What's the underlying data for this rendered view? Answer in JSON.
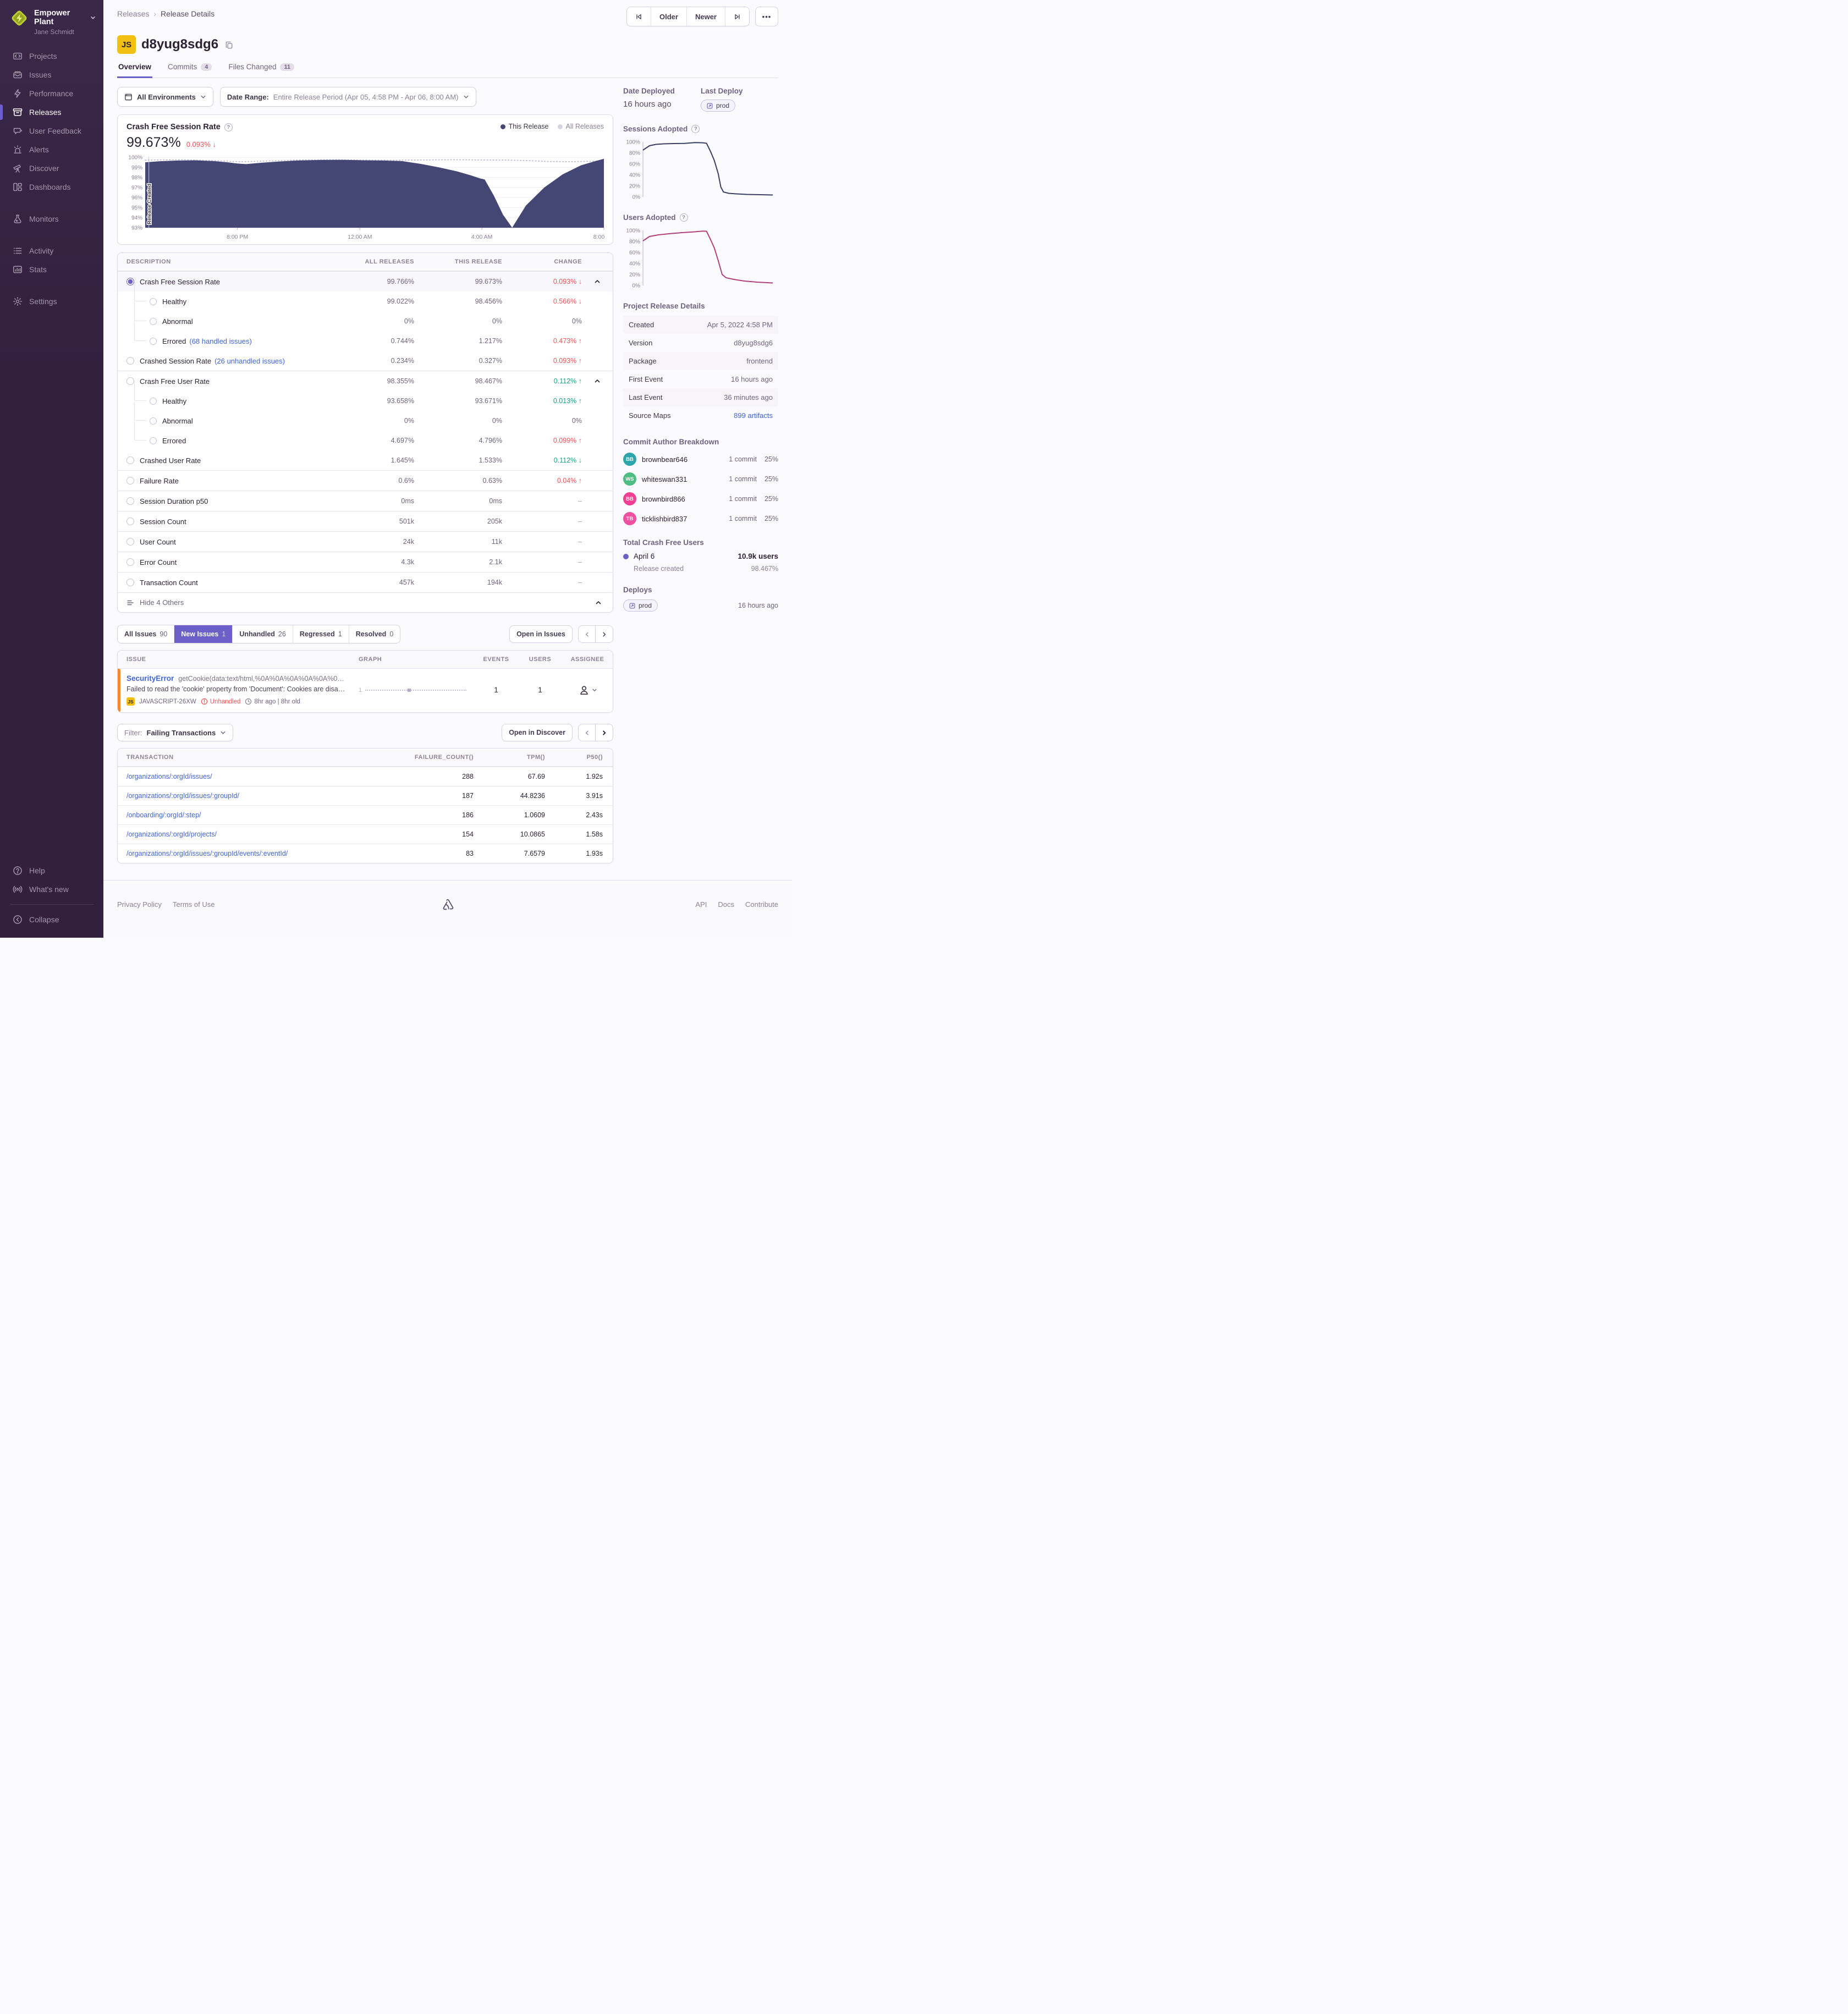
{
  "colors": {
    "accent": "#6c5fc7",
    "link": "#4265d6",
    "negative": "#ef5459",
    "positive": "#18a085",
    "chart_this_release": "#444674",
    "chart_all_releases": "#c9c2d6",
    "sessions_adopted_line": "#3b3d63",
    "users_adopted_line": "#b2407c",
    "issue_level_bar": "#ee8a33",
    "js_badge_bg": "#f2c012",
    "sidebar_bg": "#33203f"
  },
  "sidebar": {
    "org": "Empower Plant",
    "user": "Jane Schmidt",
    "items": [
      {
        "label": "Projects"
      },
      {
        "label": "Issues"
      },
      {
        "label": "Performance"
      },
      {
        "label": "Releases"
      },
      {
        "label": "User Feedback"
      },
      {
        "label": "Alerts"
      },
      {
        "label": "Discover"
      },
      {
        "label": "Dashboards"
      },
      {
        "label": "Monitors"
      },
      {
        "label": "Activity"
      },
      {
        "label": "Stats"
      },
      {
        "label": "Settings"
      }
    ],
    "bottom": [
      {
        "label": "Help"
      },
      {
        "label": "What's new"
      },
      {
        "label": "Collapse"
      }
    ]
  },
  "header": {
    "breadcrumb": [
      "Releases",
      "Release Details"
    ],
    "older": "Older",
    "newer": "Newer",
    "project_badge": "JS",
    "title": "d8yug8sdg6",
    "tabs": [
      {
        "label": "Overview",
        "badge": ""
      },
      {
        "label": "Commits",
        "badge": "4"
      },
      {
        "label": "Files Changed",
        "badge": "11"
      }
    ]
  },
  "filters": {
    "environments": "All Environments",
    "date_range_label": "Date Range:",
    "date_range_value": "Entire Release Period (Apr 05, 4:58 PM - Apr 06, 8:00 AM)"
  },
  "chart": {
    "title": "Crash Free Session Rate",
    "big_value": "99.673%",
    "delta": "0.093%",
    "delta_arrow": "↓",
    "legend_this": "This Release",
    "legend_all": "All Releases"
  },
  "chart_data": [
    {
      "id": "crash_free_session_rate",
      "type": "area",
      "title": "Crash Free Session Rate",
      "ylim": [
        93,
        100
      ],
      "yticks": [
        93,
        94,
        95,
        96,
        97,
        98,
        99,
        100
      ],
      "grid": true,
      "axis": "bottom",
      "annotation": "Release Created",
      "xticks": [
        {
          "pos": 20.1,
          "label": "8:00 PM"
        },
        {
          "pos": 46.8,
          "label": "12:00 AM"
        },
        {
          "pos": 73.4,
          "label": "4:00 AM"
        },
        {
          "pos": 100,
          "label": "8:00 AM"
        }
      ],
      "series": [
        {
          "name": "All Releases",
          "type": "dotted",
          "color": "#c9c2d6",
          "points": [
            [
              0,
              99.72
            ],
            [
              8,
              99.76
            ],
            [
              16,
              99.65
            ],
            [
              21,
              99.55
            ],
            [
              26,
              99.62
            ],
            [
              33,
              99.72
            ],
            [
              40,
              99.76
            ],
            [
              47,
              99.72
            ],
            [
              54,
              99.7
            ],
            [
              60,
              99.73
            ],
            [
              67,
              99.76
            ],
            [
              73,
              99.74
            ],
            [
              79,
              99.72
            ],
            [
              84,
              99.66
            ],
            [
              88,
              99.58
            ],
            [
              93,
              99.56
            ],
            [
              97,
              99.6
            ],
            [
              100,
              99.64
            ]
          ]
        },
        {
          "name": "This Release",
          "type": "area",
          "color": "#444674",
          "points": [
            [
              0,
              99.5
            ],
            [
              3,
              99.6
            ],
            [
              7,
              99.68
            ],
            [
              11,
              99.7
            ],
            [
              15,
              99.62
            ],
            [
              18,
              99.5
            ],
            [
              20,
              99.38
            ],
            [
              22,
              99.32
            ],
            [
              25,
              99.45
            ],
            [
              29,
              99.58
            ],
            [
              33,
              99.68
            ],
            [
              38,
              99.73
            ],
            [
              43,
              99.75
            ],
            [
              48,
              99.7
            ],
            [
              52,
              99.68
            ],
            [
              56,
              99.62
            ],
            [
              60,
              99.35
            ],
            [
              64,
              99.0
            ],
            [
              68,
              98.6
            ],
            [
              71,
              98.2
            ],
            [
              73,
              97.9
            ],
            [
              74,
              97.8
            ],
            [
              76,
              96.2
            ],
            [
              78,
              94.3
            ],
            [
              80,
              93.0
            ],
            [
              83,
              95.2
            ],
            [
              87,
              97.0
            ],
            [
              91,
              98.3
            ],
            [
              95,
              99.2
            ],
            [
              98,
              99.6
            ],
            [
              100,
              99.85
            ]
          ]
        }
      ]
    },
    {
      "id": "sessions_adopted",
      "type": "line",
      "title": "Sessions Adopted",
      "ylim": [
        0,
        100
      ],
      "yticks": [
        0,
        20,
        40,
        60,
        80,
        100
      ],
      "axis": "left",
      "series": [
        {
          "name": "Sessions Adopted",
          "type": "line",
          "color": "#3b3d63",
          "points": [
            [
              0,
              85
            ],
            [
              5,
              93
            ],
            [
              10,
              95.5
            ],
            [
              16,
              96.5
            ],
            [
              24,
              97
            ],
            [
              32,
              97.2
            ],
            [
              40,
              98.8
            ],
            [
              46,
              98.4
            ],
            [
              49,
              97.5
            ],
            [
              52,
              83
            ],
            [
              55,
              66
            ],
            [
              58,
              42
            ],
            [
              60,
              18
            ],
            [
              62,
              9
            ],
            [
              66,
              6.5
            ],
            [
              72,
              5.5
            ],
            [
              80,
              4.5
            ],
            [
              90,
              4
            ],
            [
              100,
              3.5
            ]
          ]
        }
      ]
    },
    {
      "id": "users_adopted",
      "type": "line",
      "title": "Users Adopted",
      "ylim": [
        0,
        100
      ],
      "yticks": [
        0,
        20,
        40,
        60,
        80,
        100
      ],
      "axis": "left",
      "series": [
        {
          "name": "Users Adopted",
          "type": "line",
          "color": "#b2407c",
          "points": [
            [
              0,
              81
            ],
            [
              5,
              89
            ],
            [
              12,
              92
            ],
            [
              20,
              94
            ],
            [
              30,
              96
            ],
            [
              40,
              97.5
            ],
            [
              46,
              98.8
            ],
            [
              49,
              98.5
            ],
            [
              52,
              84
            ],
            [
              55,
              68
            ],
            [
              58,
              45
            ],
            [
              61,
              20
            ],
            [
              64,
              14
            ],
            [
              70,
              11
            ],
            [
              78,
              8
            ],
            [
              88,
              6
            ],
            [
              100,
              4.5
            ]
          ]
        }
      ]
    }
  ],
  "metrics": {
    "headers": [
      "DESCRIPTION",
      "ALL RELEASES",
      "THIS RELEASE",
      "CHANGE"
    ],
    "rows": [
      {
        "label": "Crash Free Session Rate",
        "all": "99.766%",
        "this": "99.673%",
        "change": "0.093%",
        "arrow": "↓"
      },
      {
        "label": "Healthy",
        "all": "99.022%",
        "this": "98.456%",
        "change": "0.566%",
        "arrow": "↓"
      },
      {
        "label": "Abnormal",
        "all": "0%",
        "this": "0%",
        "change": "0%",
        "arrow": ""
      },
      {
        "label": "Errored",
        "link": "(68 handled issues)",
        "all": "0.744%",
        "this": "1.217%",
        "change": "0.473%",
        "arrow": "↑"
      },
      {
        "label": "Crashed Session Rate",
        "link": "(26 unhandled issues)",
        "all": "0.234%",
        "this": "0.327%",
        "change": "0.093%",
        "arrow": "↑"
      },
      {
        "label": "Crash Free User Rate",
        "all": "98.355%",
        "this": "98.467%",
        "change": "0.112%",
        "arrow": "↑"
      },
      {
        "label": "Healthy",
        "all": "93.658%",
        "this": "93.671%",
        "change": "0.013%",
        "arrow": "↑"
      },
      {
        "label": "Abnormal",
        "all": "0%",
        "this": "0%",
        "change": "0%",
        "arrow": ""
      },
      {
        "label": "Errored",
        "all": "4.697%",
        "this": "4.796%",
        "change": "0.099%",
        "arrow": "↑"
      },
      {
        "label": "Crashed User Rate",
        "all": "1.645%",
        "this": "1.533%",
        "change": "0.112%",
        "arrow": "↓"
      },
      {
        "label": "Failure Rate",
        "all": "0.6%",
        "this": "0.63%",
        "change": "0.04%",
        "arrow": "↑"
      },
      {
        "label": "Session Duration p50",
        "all": "0ms",
        "this": "0ms",
        "change": "–",
        "arrow": ""
      },
      {
        "label": "Session Count",
        "all": "501k",
        "this": "205k",
        "change": "–",
        "arrow": ""
      },
      {
        "label": "User Count",
        "all": "24k",
        "this": "11k",
        "change": "–",
        "arrow": ""
      },
      {
        "label": "Error Count",
        "all": "4.3k",
        "this": "2.1k",
        "change": "–",
        "arrow": ""
      },
      {
        "label": "Transaction Count",
        "all": "457k",
        "this": "194k",
        "change": "–",
        "arrow": ""
      }
    ],
    "footer": "Hide 4 Others"
  },
  "issues": {
    "tabs": [
      {
        "label": "All Issues",
        "count": "90"
      },
      {
        "label": "New Issues",
        "count": "1"
      },
      {
        "label": "Unhandled",
        "count": "26"
      },
      {
        "label": "Regressed",
        "count": "1"
      },
      {
        "label": "Resolved",
        "count": "0"
      }
    ],
    "open_button": "Open in Issues",
    "headers": [
      "ISSUE",
      "GRAPH",
      "EVENTS",
      "USERS",
      "ASSIGNEE"
    ],
    "row": {
      "title": "SecurityError",
      "culprit": "getCookie(data:text/html,%0A%0A%0A%0A%0A%0…",
      "message": "Failed to read the 'cookie' property from 'Document': Cookies are disa…",
      "project_badge": "JS",
      "project": "JAVASCRIPT-26XW",
      "unhandled": "Unhandled",
      "age": "8hr ago | 8hr old",
      "graph_label": "1",
      "events": "1",
      "users": "1"
    }
  },
  "transactions": {
    "filter_label": "Filter:",
    "filter_value": "Failing Transactions",
    "open_button": "Open in Discover",
    "headers": [
      "TRANSACTION",
      "FAILURE_COUNT()",
      "TPM()",
      "P50()"
    ],
    "rows": [
      [
        "/organizations/:orgId/issues/",
        "288",
        "67.69",
        "1.92s"
      ],
      [
        "/organizations/:orgId/issues/:groupId/",
        "187",
        "44.8236",
        "3.91s"
      ],
      [
        "/onboarding/:orgId/:step/",
        "186",
        "1.0609",
        "2.43s"
      ],
      [
        "/organizations/:orgId/projects/",
        "154",
        "10.0865",
        "1.58s"
      ],
      [
        "/organizations/:orgId/issues/:groupId/events/:eventId/",
        "83",
        "7.6579",
        "1.93s"
      ]
    ]
  },
  "deploy_info": {
    "date_deployed_label": "Date Deployed",
    "date_deployed": "16 hours ago",
    "last_deploy_label": "Last Deploy",
    "env": "prod"
  },
  "adoption": {
    "sessions_title": "Sessions Adopted",
    "users_title": "Users Adopted"
  },
  "details": {
    "title": "Project Release Details",
    "rows": [
      {
        "label": "Created",
        "value": "Apr 5, 2022 4:58 PM"
      },
      {
        "label": "Version",
        "value": "d8yug8sdg6"
      },
      {
        "label": "Package",
        "value": "frontend"
      },
      {
        "label": "First Event",
        "value": "16 hours ago"
      },
      {
        "label": "Last Event",
        "value": "36 minutes ago"
      },
      {
        "label": "Source Maps",
        "value": "899 artifacts"
      }
    ]
  },
  "authors": {
    "title": "Commit Author Breakdown",
    "rows": [
      {
        "initials": "BB",
        "color": "#2da5ad",
        "name": "brownbear646",
        "commits": "1 commit",
        "pct": "25%"
      },
      {
        "initials": "WS",
        "color": "#4cbd83",
        "name": "whiteswan331",
        "commits": "1 commit",
        "pct": "25%"
      },
      {
        "initials": "BB",
        "color": "#f23e93",
        "name": "brownbird866",
        "commits": "1 commit",
        "pct": "25%"
      },
      {
        "initials": "TB",
        "color": "#f0509f",
        "name": "ticklishbird837",
        "commits": "1 commit",
        "pct": "25%"
      }
    ]
  },
  "crash_free_users": {
    "title": "Total Crash Free Users",
    "date": "April 6",
    "users": "10.9k users",
    "sub": "Release created",
    "pct": "98.467%"
  },
  "deploys": {
    "title": "Deploys",
    "env": "prod",
    "when": "16 hours ago"
  },
  "footer": {
    "left": [
      "Privacy Policy",
      "Terms of Use"
    ],
    "right": [
      "API",
      "Docs",
      "Contribute"
    ]
  }
}
